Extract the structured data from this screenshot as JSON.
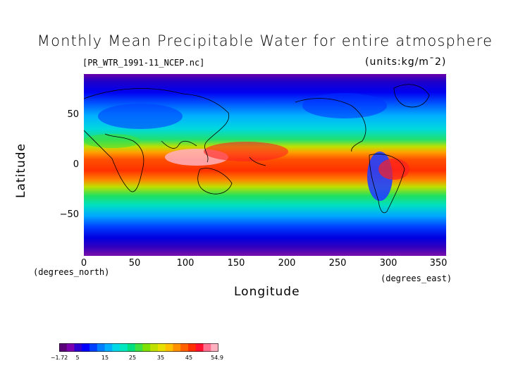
{
  "title": "Monthly Mean Precipitable Water for entire atmosphere",
  "subtitle": "[PR_WTR_1991-11_NCEP.nc]",
  "units": "(units:kg/m¯2)",
  "axes": {
    "xlabel": "Longitude",
    "ylabel": "Latitude",
    "x_coord_label": "(degrees_east)",
    "y_coord_label": "(degrees_north)",
    "x_ticks": [
      "0",
      "50",
      "100",
      "150",
      "200",
      "250",
      "300",
      "350"
    ],
    "y_ticks": [
      "50",
      "0",
      "−50"
    ]
  },
  "colorbar": {
    "labels": [
      "−1.72",
      "5",
      "15",
      "25",
      "35",
      "45",
      "54.9"
    ],
    "colors": [
      "#5a0078",
      "#7a00b0",
      "#3000d0",
      "#0000ff",
      "#0040ff",
      "#0080ff",
      "#00b0ff",
      "#00d8e8",
      "#00e8c0",
      "#00e080",
      "#40e040",
      "#80e000",
      "#c0e000",
      "#e8e000",
      "#ffc000",
      "#ff9000",
      "#ff6000",
      "#ff3000",
      "#ff1030",
      "#ff7090",
      "#ffb0c0"
    ]
  },
  "chart_data": {
    "type": "heatmap",
    "title": "Monthly Mean Precipitable Water for entire atmosphere",
    "xlabel": "Longitude",
    "ylabel": "Latitude",
    "xlim": [
      0,
      357.5
    ],
    "ylim": [
      -90,
      90
    ],
    "value_range": [
      -1.72,
      54.9
    ],
    "units": "kg/m^2",
    "zonal_profile": [
      {
        "lat": 90,
        "value": 3
      },
      {
        "lat": 75,
        "value": 5
      },
      {
        "lat": 65,
        "value": 9
      },
      {
        "lat": 55,
        "value": 14
      },
      {
        "lat": 45,
        "value": 19
      },
      {
        "lat": 35,
        "value": 27
      },
      {
        "lat": 25,
        "value": 35
      },
      {
        "lat": 15,
        "value": 44
      },
      {
        "lat": 5,
        "value": 48
      },
      {
        "lat": -5,
        "value": 46
      },
      {
        "lat": -15,
        "value": 40
      },
      {
        "lat": -25,
        "value": 30
      },
      {
        "lat": -35,
        "value": 22
      },
      {
        "lat": -45,
        "value": 15
      },
      {
        "lat": -55,
        "value": 11
      },
      {
        "lat": -65,
        "value": 7
      },
      {
        "lat": -75,
        "value": 3
      },
      {
        "lat": -90,
        "value": 0
      }
    ]
  }
}
